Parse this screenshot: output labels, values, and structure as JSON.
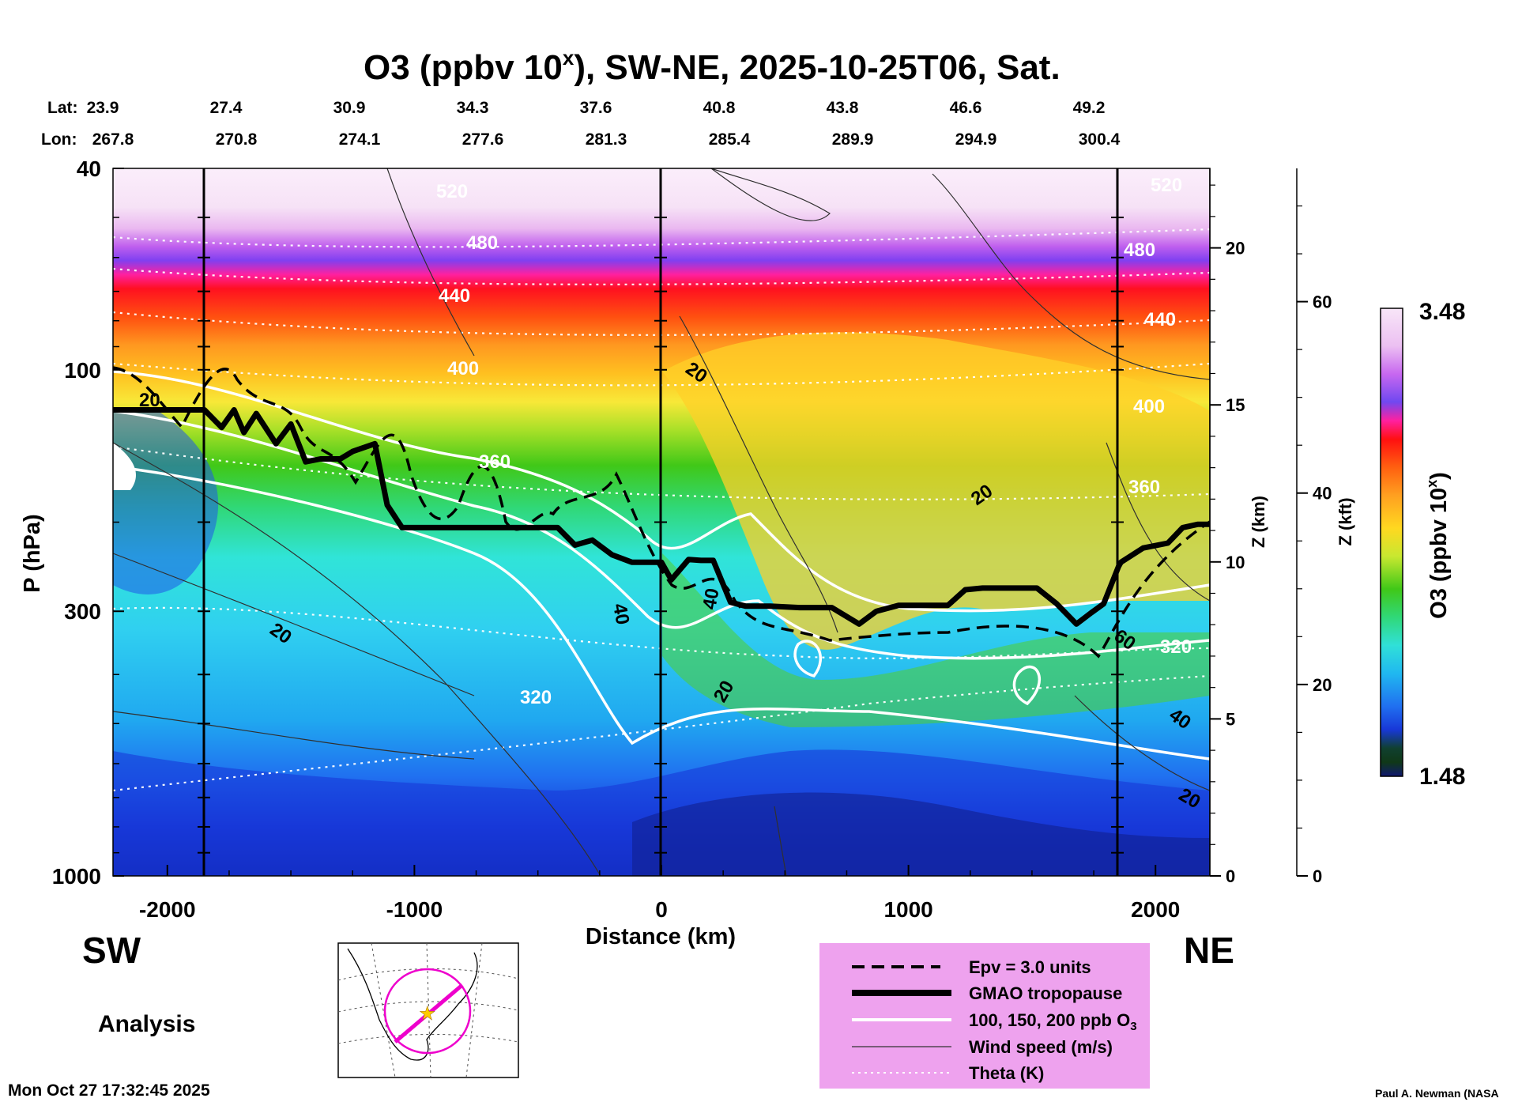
{
  "chart_data": {
    "type": "heatmap",
    "title_main": "O3 (ppbv 10",
    "title_sup": "x",
    "title_rest": "), SW-NE, 2025-10-25T06, Sat.",
    "lat_label": "Lat:",
    "lon_label": "Lon:",
    "lat": [
      "23.9",
      "27.4",
      "30.9",
      "34.3",
      "37.6",
      "40.8",
      "43.8",
      "46.6",
      "49.2"
    ],
    "lon": [
      "267.8",
      "270.8",
      "274.1",
      "277.6",
      "281.3",
      "285.4",
      "289.9",
      "294.9",
      "300.4"
    ],
    "xlabel": "Distance (km)",
    "xlim": [
      -2220,
      2220
    ],
    "xticks": [
      "-2000",
      "-1000",
      "0",
      "1000",
      "2000"
    ],
    "ylabel": "P (hPa)",
    "ylim": [
      1000,
      40
    ],
    "yscale": "log",
    "yticks": [
      "40",
      "100",
      "300",
      "1000"
    ],
    "z_km_label": "Z (km)",
    "z_km_ticks": [
      "0",
      "5",
      "10",
      "15",
      "20"
    ],
    "z_kft_label": "Z (kft)",
    "z_kft_ticks": [
      "0",
      "20",
      "40",
      "60"
    ],
    "colorbar_label": "O3 (ppbv 10",
    "colorbar_label_sup": "x",
    "colorbar_label_end": ")",
    "colorbar_max": "3.48",
    "colorbar_min": "1.48",
    "colorbar_colors": [
      "#f5dff5",
      "#e8a8f2",
      "#d070ee",
      "#a040f0",
      "#6040e8",
      "#ff30a0",
      "#ff1020",
      "#ff6010",
      "#ffa020",
      "#ffd020",
      "#f0f040",
      "#90e020",
      "#30c010",
      "#20d070",
      "#20e0d0",
      "#20c8f0",
      "#2090f0",
      "#2050e0",
      "#1020c0",
      "#102080",
      "#103010",
      "#102060"
    ],
    "direction_left": "SW",
    "direction_right": "NE",
    "analysis_label": "Analysis",
    "timestamp": "Mon Oct 27 17:32:45 2025",
    "credit": "Paul A. Newman (NASA",
    "legend": [
      {
        "label": "Epv = 3.0 units",
        "style": "dashed"
      },
      {
        "label": "GMAO tropopause",
        "style": "thick"
      },
      {
        "label": "100, 150, 200 ppb O",
        "sub": "3",
        "style": "white"
      },
      {
        "label": "Wind speed (m/s)",
        "style": "thin"
      },
      {
        "label": "Theta (K)",
        "style": "dotted"
      }
    ],
    "theta_labels": [
      "520",
      "480",
      "440",
      "400",
      "360",
      "320"
    ],
    "wind_labels": [
      "20",
      "40",
      "60"
    ],
    "tropopause": {
      "x_km": [
        -2220,
        -1850,
        -1780,
        -1730,
        -1690,
        -1640,
        -1560,
        -1500,
        -1440,
        -1380,
        -1300,
        -1250,
        -1160,
        -1110,
        -1050,
        -980,
        -900,
        -800,
        -600,
        -420,
        -350,
        -280,
        -200,
        -120,
        0,
        40,
        110,
        160,
        210,
        280,
        340,
        440,
        560,
        690,
        800,
        870,
        960,
        1100,
        1160,
        1230,
        1300,
        1400,
        1520,
        1600,
        1680,
        1740,
        1790,
        1850,
        1860,
        1950,
        2050,
        2110,
        2170,
        2220
      ],
      "p_hpa": [
        120,
        120,
        130,
        120,
        133,
        122,
        140,
        128,
        152,
        150,
        150,
        145,
        140,
        185,
        205,
        205,
        205,
        205,
        205,
        205,
        222,
        217,
        232,
        240,
        240,
        260,
        237,
        238,
        238,
        288,
        293,
        293,
        295,
        295,
        318,
        300,
        292,
        292,
        292,
        272,
        270,
        270,
        270,
        290,
        318,
        302,
        290,
        245,
        240,
        225,
        220,
        205,
        202,
        202
      ]
    }
  }
}
